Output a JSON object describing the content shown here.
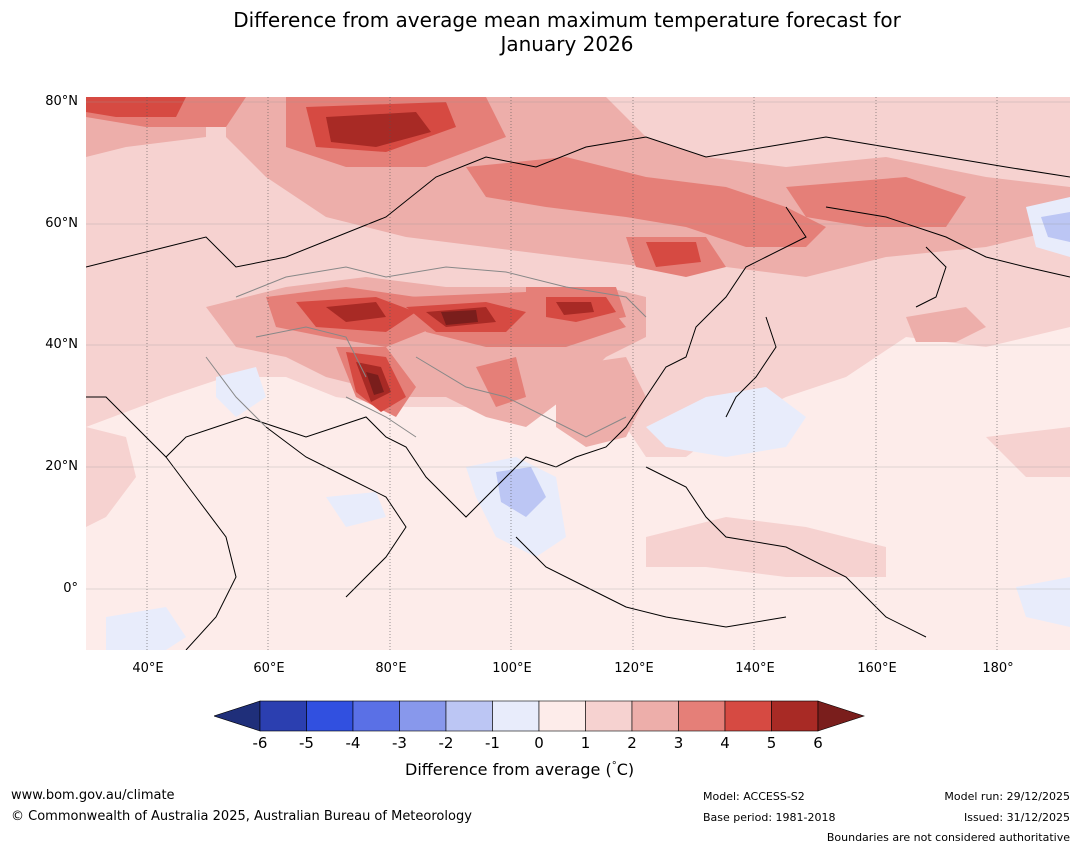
{
  "title": {
    "line1": "Difference from average mean maximum temperature forecast for",
    "line2": "January 2026"
  },
  "map": {
    "lat_labels": [
      "80°N",
      "60°N",
      "40°N",
      "20°N",
      "0°"
    ],
    "lon_labels": [
      "40°E",
      "60°E",
      "80°E",
      "100°E",
      "120°E",
      "140°E",
      "160°E",
      "180°"
    ],
    "lon_range": [
      30,
      192
    ],
    "lat_range": [
      -10,
      81
    ]
  },
  "colorbar": {
    "ticks": [
      "-6",
      "-5",
      "-4",
      "-3",
      "-2",
      "-1",
      "0",
      "1",
      "2",
      "3",
      "4",
      "5",
      "6"
    ],
    "label": "Difference from average (°C)",
    "label_prefix": "Difference from average (",
    "label_unit": "°",
    "label_suffix": "C)",
    "colors": [
      "#1f2f7a",
      "#2b3fb0",
      "#3150e0",
      "#5a70e6",
      "#8898ec",
      "#bcc6f4",
      "#e8ecfb",
      "#fdecea",
      "#f6d2d0",
      "#edaeaa",
      "#e57f78",
      "#d64a42",
      "#a82a25",
      "#7a1e1c"
    ]
  },
  "footer": {
    "website": "www.bom.gov.au/climate",
    "copyright": "© Commonwealth of Australia 2025, Australian Bureau of Meteorology",
    "model": "Model: ACCESS-S2",
    "base_period": "Base period: 1981-2018",
    "model_run": "Model run: 29/12/2025",
    "issued": "Issued: 31/12/2025",
    "disclaimer": "Boundaries are not considered authoritative"
  }
}
